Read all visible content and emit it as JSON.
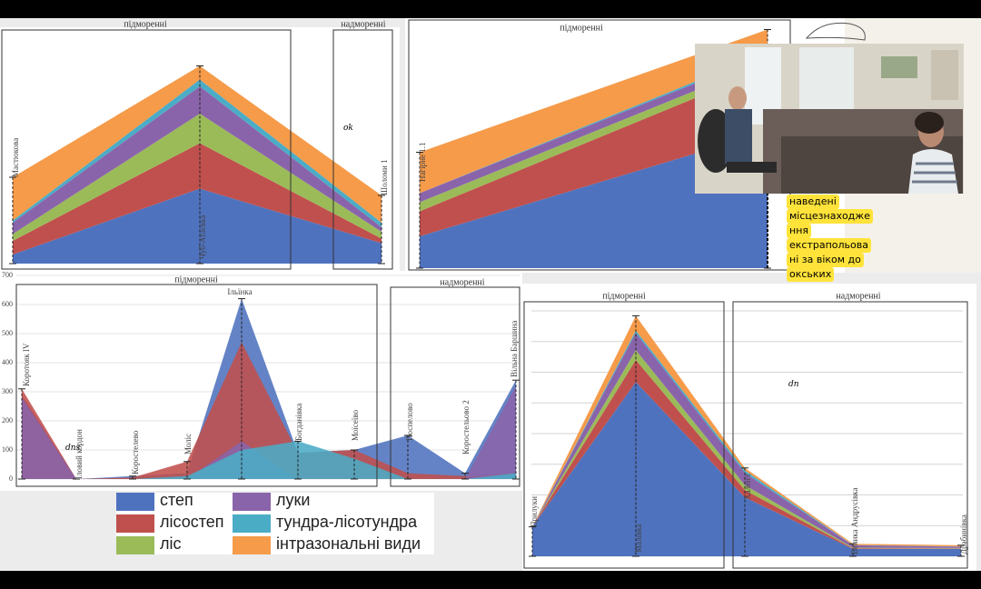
{
  "annotations": [
    "ok",
    "dns",
    "dn"
  ],
  "caption": [
    "наведені",
    "місцезнаходже",
    "ння",
    "екстрапольова",
    "ні за віком до",
    "окських"
  ],
  "chart_data": [
    {
      "type": "area",
      "stacked": true,
      "regions": [
        "підморенні",
        "надморенні"
      ],
      "categories": [
        "Мастюкова",
        "Чуб-Атаєвка",
        "Шоломи 1"
      ],
      "ylim": [
        0,
        100
      ],
      "series": [
        {
          "name": "степ",
          "color": "#4f72be",
          "values": [
            4,
            33,
            9
          ]
        },
        {
          "name": "лісостеп",
          "color": "#c0504d",
          "values": [
            6,
            20,
            2
          ]
        },
        {
          "name": "ліс",
          "color": "#9bbb59",
          "values": [
            3,
            13,
            3
          ]
        },
        {
          "name": "луки",
          "color": "#8a64aa",
          "values": [
            5,
            12,
            2
          ]
        },
        {
          "name": "тундра-лісотундра",
          "color": "#4bacc6",
          "values": [
            1,
            3,
            2
          ]
        },
        {
          "name": "інтразональні види",
          "color": "#f59b4a",
          "values": [
            19,
            6,
            12
          ]
        }
      ]
    },
    {
      "type": "area",
      "stacked": true,
      "regions": [
        "підморенні"
      ],
      "categories": [
        "Нагірне 1.1",
        null
      ],
      "ylim": [
        0,
        100
      ],
      "series": [
        {
          "name": "степ",
          "color": "#4f72be",
          "values": [
            14,
            60
          ]
        },
        {
          "name": "лісостеп",
          "color": "#c0504d",
          "values": [
            11,
            28
          ]
        },
        {
          "name": "ліс",
          "color": "#9bbb59",
          "values": [
            4,
            3
          ]
        },
        {
          "name": "луки",
          "color": "#8a64aa",
          "values": [
            4,
            3
          ]
        },
        {
          "name": "тундра-лісотундра",
          "color": "#4bacc6",
          "values": [
            0,
            1
          ]
        },
        {
          "name": "інтразональні види",
          "color": "#f59b4a",
          "values": [
            18,
            10
          ]
        }
      ]
    },
    {
      "type": "area",
      "stacked": false,
      "regions": [
        "підморенні",
        "надморенні"
      ],
      "categories": [
        "Коротояк IV",
        "Іловий кордон",
        "Коростелево",
        "Моліс",
        "Ільїнка",
        "Богданівка",
        "Моїсеїво",
        "Поспелово",
        "Коростельово 2",
        "Вільна Баршина"
      ],
      "ylim": [
        0,
        700
      ],
      "yticks": [
        0,
        100,
        200,
        300,
        400,
        500,
        600,
        700
      ],
      "series": [
        {
          "name": "степ",
          "color": "#4f72be",
          "values": [
            290,
            0,
            10,
            20,
            620,
            90,
            100,
            150,
            20,
            340
          ]
        },
        {
          "name": "лісостеп",
          "color": "#c0504d",
          "values": [
            310,
            0,
            5,
            60,
            470,
            90,
            100,
            20,
            10,
            20
          ]
        },
        {
          "name": "ліс",
          "color": "#9bbb59",
          "values": [
            0,
            0,
            0,
            0,
            0,
            0,
            0,
            0,
            0,
            0
          ]
        },
        {
          "name": "луки",
          "color": "#8a64aa",
          "values": [
            280,
            0,
            0,
            0,
            130,
            0,
            0,
            0,
            0,
            320
          ]
        },
        {
          "name": "тундра-лісотундра",
          "color": "#4bacc6",
          "values": [
            0,
            0,
            0,
            10,
            100,
            130,
            70,
            0,
            0,
            20
          ]
        },
        {
          "name": "інтразональні види",
          "color": "#f59b4a",
          "values": [
            0,
            0,
            0,
            0,
            0,
            0,
            0,
            0,
            0,
            0
          ]
        }
      ]
    },
    {
      "type": "area",
      "stacked": true,
      "regions": [
        "підморенні",
        "надморенні"
      ],
      "categories": [
        "Прилуки",
        "Малівка",
        "Халеп'є",
        "Велика Андрусівка",
        "Драбинівка"
      ],
      "ylim": [
        0,
        100
      ],
      "series": [
        {
          "name": "степ",
          "color": "#4f72be",
          "values": [
            12,
            71,
            24,
            3,
            3
          ]
        },
        {
          "name": "лісостеп",
          "color": "#c0504d",
          "values": [
            0,
            9,
            3,
            0.3,
            0.2
          ]
        },
        {
          "name": "ліс",
          "color": "#9bbb59",
          "values": [
            0,
            4,
            2,
            0.2,
            0.2
          ]
        },
        {
          "name": "луки",
          "color": "#8a64aa",
          "values": [
            0,
            7,
            5,
            1,
            0.5
          ]
        },
        {
          "name": "тундра-лісотундра",
          "color": "#4bacc6",
          "values": [
            0,
            1,
            1,
            0.1,
            0.1
          ]
        },
        {
          "name": "інтразональні види",
          "color": "#f59b4a",
          "values": [
            0,
            6,
            1,
            0.5,
            0.5
          ]
        }
      ]
    }
  ]
}
